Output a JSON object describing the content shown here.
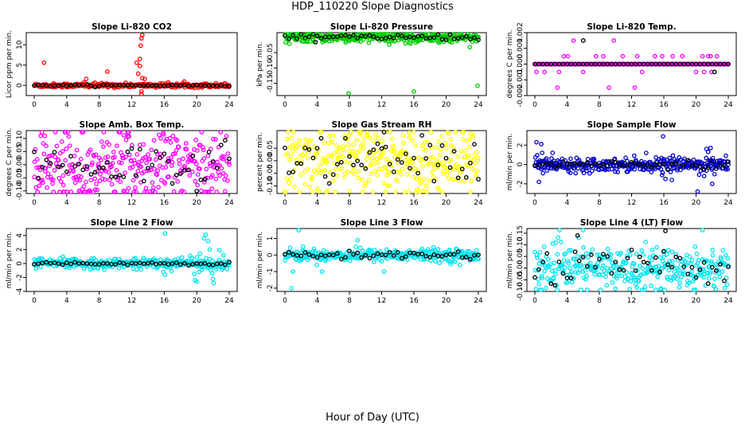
{
  "figure": {
    "title": "HDP_110220  Slope Diagnostics",
    "xlabel": "Hour of Day (UTC)"
  },
  "chart_data": [
    {
      "type": "scatter",
      "title": "Slope Li-820 CO2",
      "ylabel": "Licor ppm per min.",
      "color": "#ff0000",
      "xlim": [
        0,
        24
      ],
      "xticks": [
        0,
        4,
        8,
        12,
        16,
        20,
        24
      ],
      "ylim": [
        -2.5,
        13
      ],
      "yticks": [
        0,
        5,
        10
      ],
      "ytick_labels": [
        "0",
        "5",
        "10"
      ],
      "spread": 0.25,
      "marker_spread": 0.12,
      "outliers": [
        [
          1.2,
          5.6
        ],
        [
          6.4,
          1.6
        ],
        [
          6.1,
          0.7
        ],
        [
          9.0,
          3.4
        ],
        [
          12.6,
          5.6
        ],
        [
          13.0,
          6.5
        ],
        [
          13.1,
          9.8
        ],
        [
          13.2,
          11.6
        ],
        [
          13.3,
          12.4
        ],
        [
          13.0,
          4.8
        ],
        [
          13.3,
          1.8
        ],
        [
          13.6,
          1.6
        ],
        [
          13.2,
          -1.5
        ],
        [
          13.2,
          -2.4
        ],
        [
          12.8,
          2.9
        ]
      ],
      "black_outliers": []
    },
    {
      "type": "scatter",
      "title": "Slope Li-820 Pressure",
      "ylabel": "kPa per min.",
      "color": "#00cc00",
      "xlim": [
        0,
        24
      ],
      "xticks": [
        0,
        4,
        8,
        12,
        16,
        20,
        24
      ],
      "ylim": [
        -0.19,
        0.015
      ],
      "yticks": [
        -0.05,
        -0.1,
        -0.15
      ],
      "ytick_labels": [
        "-0.05",
        "-0.10",
        "-0.15"
      ],
      "spread": 0.008,
      "marker_spread": 0.005,
      "outliers": [
        [
          7.9,
          -0.183
        ],
        [
          16.0,
          -0.177
        ],
        [
          23.9,
          -0.158
        ],
        [
          2.8,
          -0.012
        ],
        [
          9.4,
          -0.014
        ]
      ],
      "black_outliers": [
        [
          3.8,
          -0.016
        ]
      ]
    },
    {
      "type": "scatter",
      "title": "Slope Li-820 Temp.",
      "ylabel": "degrees C per min.",
      "color": "#ff00ff",
      "xlim": [
        0,
        24
      ],
      "xticks": [
        0,
        4,
        8,
        12,
        16,
        20,
        24
      ],
      "ylim": [
        -0.002,
        0.002
      ],
      "yticks": [
        -0.002,
        -0.001,
        0.0,
        0.001,
        0.002
      ],
      "ytick_labels": [
        "-0.002",
        "-0.001",
        "0.000",
        "0.001",
        "0.002"
      ],
      "spread": 0,
      "marker_spread": 0,
      "outliers": [
        [
          0.2,
          -0.0005
        ],
        [
          1.2,
          -0.0005
        ],
        [
          3.6,
          0.0005
        ],
        [
          4.1,
          0.0005
        ],
        [
          4.8,
          0.0015
        ],
        [
          6.0,
          -0.0005
        ],
        [
          7.6,
          0.0005
        ],
        [
          8.5,
          0.0005
        ],
        [
          9.2,
          -0.0015
        ],
        [
          9.8,
          0.0015
        ],
        [
          10.9,
          0.0005
        ],
        [
          12.4,
          -0.0015
        ],
        [
          12.7,
          0.0005
        ],
        [
          13.3,
          -0.0005
        ],
        [
          14.9,
          0.0005
        ],
        [
          15.8,
          0.0005
        ],
        [
          17.1,
          0.0005
        ],
        [
          18.3,
          0.0005
        ],
        [
          20.8,
          0.0005
        ],
        [
          21.5,
          0.0005
        ],
        [
          21.8,
          0.0005
        ],
        [
          22.6,
          0.0005
        ],
        [
          20.0,
          -0.0005
        ],
        [
          21.0,
          -0.0005
        ],
        [
          21.9,
          -0.0005
        ],
        [
          2.8,
          -0.0015
        ],
        [
          3.0,
          -0.0005
        ]
      ],
      "black_outliers": [
        [
          6.0,
          0.0015
        ],
        [
          22.3,
          -0.0005
        ]
      ]
    },
    {
      "type": "scatter",
      "title": "Slope Amb. Box Temp.",
      "ylabel": "degrees C per min.",
      "color": "#ff00ff",
      "xlim": [
        0,
        24
      ],
      "xticks": [
        0,
        4,
        8,
        12,
        16,
        20,
        24
      ],
      "ylim": [
        -0.11,
        0.13
      ],
      "yticks": [
        -0.1,
        -0.05,
        0.0,
        0.05,
        0.1
      ],
      "ytick_labels": [
        "-0.10",
        "-0.05",
        "0.00",
        "0.05",
        "0.10"
      ],
      "spread": 0.07,
      "marker_spread": 0.045,
      "outliers": [
        [
          0.8,
          0.11
        ],
        [
          1.3,
          0.11
        ],
        [
          11.6,
          -0.09
        ],
        [
          3.6,
          -0.11
        ],
        [
          11.0,
          -0.1
        ]
      ],
      "black_outliers": []
    },
    {
      "type": "scatter",
      "title": "Slope Gas Stream RH",
      "ylabel": "percent per min.",
      "color": "#ffff00",
      "xlim": [
        0,
        24
      ],
      "xticks": [
        0,
        4,
        8,
        12,
        16,
        20,
        24
      ],
      "ylim": [
        -0.13,
        0.12
      ],
      "yticks": [
        -0.1,
        -0.05,
        0.0,
        0.05
      ],
      "ytick_labels": [
        "-0.10",
        "-0.05",
        "0.00",
        "0.05"
      ],
      "spread": 0.065,
      "marker_spread": 0.045,
      "outliers": [
        [
          12.4,
          0.12
        ],
        [
          8.0,
          -0.12
        ],
        [
          17.2,
          -0.12
        ],
        [
          23.0,
          -0.13
        ]
      ],
      "black_outliers": [
        [
          12.3,
          0.12
        ]
      ]
    },
    {
      "type": "scatter",
      "title": "Slope Sample Flow",
      "ylabel": "ml/min per min.",
      "color": "#0000cc",
      "xlim": [
        0,
        24
      ],
      "xticks": [
        0,
        4,
        8,
        12,
        16,
        20,
        24
      ],
      "ylim": [
        -3,
        3.5
      ],
      "yticks": [
        -2,
        0,
        2
      ],
      "ytick_labels": [
        "-2",
        "0",
        "2"
      ],
      "spread": 0.35,
      "marker_spread": 0.2,
      "outliers": [
        [
          0.2,
          2.3
        ],
        [
          0.8,
          2.1
        ],
        [
          0.9,
          1.2
        ],
        [
          1.0,
          -0.9
        ],
        [
          0.5,
          -1.8
        ],
        [
          2.2,
          1.2
        ],
        [
          15.9,
          2.9
        ],
        [
          16.2,
          -1.5
        ],
        [
          17.0,
          -1.6
        ],
        [
          20.2,
          -2.8
        ],
        [
          21.3,
          1.6
        ],
        [
          21.5,
          1.3
        ],
        [
          21.8,
          1.7
        ],
        [
          22.0,
          -2.0
        ],
        [
          22.3,
          -1.0
        ],
        [
          21.0,
          -1.2
        ],
        [
          23.7,
          0.9
        ]
      ],
      "black_outliers": []
    },
    {
      "type": "scatter",
      "title": "Slope Line 2 Flow",
      "ylabel": "ml/min per min.",
      "color": "#00e5ee",
      "xlim": [
        0,
        24
      ],
      "xticks": [
        0,
        4,
        8,
        12,
        16,
        20,
        24
      ],
      "ylim": [
        -4,
        5
      ],
      "yticks": [
        -4,
        -2,
        0,
        2,
        4
      ],
      "ytick_labels": [
        "-4",
        "-2",
        "0",
        "2",
        "4"
      ],
      "spread": 0.35,
      "marker_spread": 0.1,
      "outliers": [
        [
          16.1,
          4.3
        ],
        [
          15.9,
          -1.2
        ],
        [
          16.1,
          -1.6
        ],
        [
          16.9,
          -1.1
        ],
        [
          19.2,
          1.1
        ],
        [
          19.4,
          0.8
        ],
        [
          19.7,
          -1.5
        ],
        [
          19.8,
          -2.4
        ],
        [
          20.0,
          -2.6
        ],
        [
          20.3,
          -1.2
        ],
        [
          20.6,
          -0.9
        ],
        [
          20.9,
          3.6
        ],
        [
          21.1,
          4.1
        ],
        [
          21.4,
          3.2
        ],
        [
          21.6,
          2.0
        ],
        [
          21.7,
          -1.0
        ],
        [
          21.9,
          -1.4
        ],
        [
          22.0,
          -2.2
        ],
        [
          22.1,
          -2.8
        ],
        [
          22.4,
          -0.8
        ],
        [
          22.8,
          1.9
        ],
        [
          23.3,
          1.2
        ],
        [
          23.1,
          -0.9
        ],
        [
          20.4,
          1.4
        ]
      ],
      "black_outliers": []
    },
    {
      "type": "scatter",
      "title": "Slope Line 3 Flow",
      "ylabel": "ml/min per min.",
      "color": "#00e5ee",
      "xlim": [
        0,
        24
      ],
      "xticks": [
        0,
        4,
        8,
        12,
        16,
        20,
        24
      ],
      "ylim": [
        -2.2,
        1.6
      ],
      "yticks": [
        -2,
        -1,
        0,
        1
      ],
      "ytick_labels": [
        "-2",
        "-1",
        "0",
        "1"
      ],
      "spread": 0.18,
      "marker_spread": 0.13,
      "outliers": [
        [
          1.7,
          1.5
        ],
        [
          1.0,
          -1.0
        ],
        [
          0.8,
          -2.0
        ],
        [
          4.6,
          -1.0
        ],
        [
          12.3,
          -1.0
        ],
        [
          9.0,
          0.9
        ],
        [
          21.7,
          -0.6
        ]
      ],
      "black_outliers": []
    },
    {
      "type": "scatter",
      "title": "Slope Line 4 (LT) Flow",
      "ylabel": "ml/min per min.",
      "color": "#00e5ee",
      "xlim": [
        0,
        24
      ],
      "xticks": [
        0,
        4,
        8,
        12,
        16,
        20,
        24
      ],
      "ylim": [
        -0.1,
        0.17
      ],
      "yticks": [
        -0.1,
        -0.05,
        0.0,
        0.05,
        0.1,
        0.15
      ],
      "ytick_labels": [
        "-0.10",
        "-0.05",
        "0.00",
        "0.05",
        "0.10",
        "0.15"
      ],
      "spread": 0.045,
      "marker_spread": 0.04,
      "outliers": [
        [
          0.8,
          -0.1
        ],
        [
          15.6,
          -0.09
        ],
        [
          16.1,
          -0.1
        ],
        [
          19.9,
          -0.1
        ],
        [
          6.0,
          0.17
        ],
        [
          20.8,
          0.17
        ]
      ],
      "black_outliers": [
        [
          5.3,
          0.14
        ],
        [
          16.2,
          0.16
        ]
      ]
    }
  ]
}
